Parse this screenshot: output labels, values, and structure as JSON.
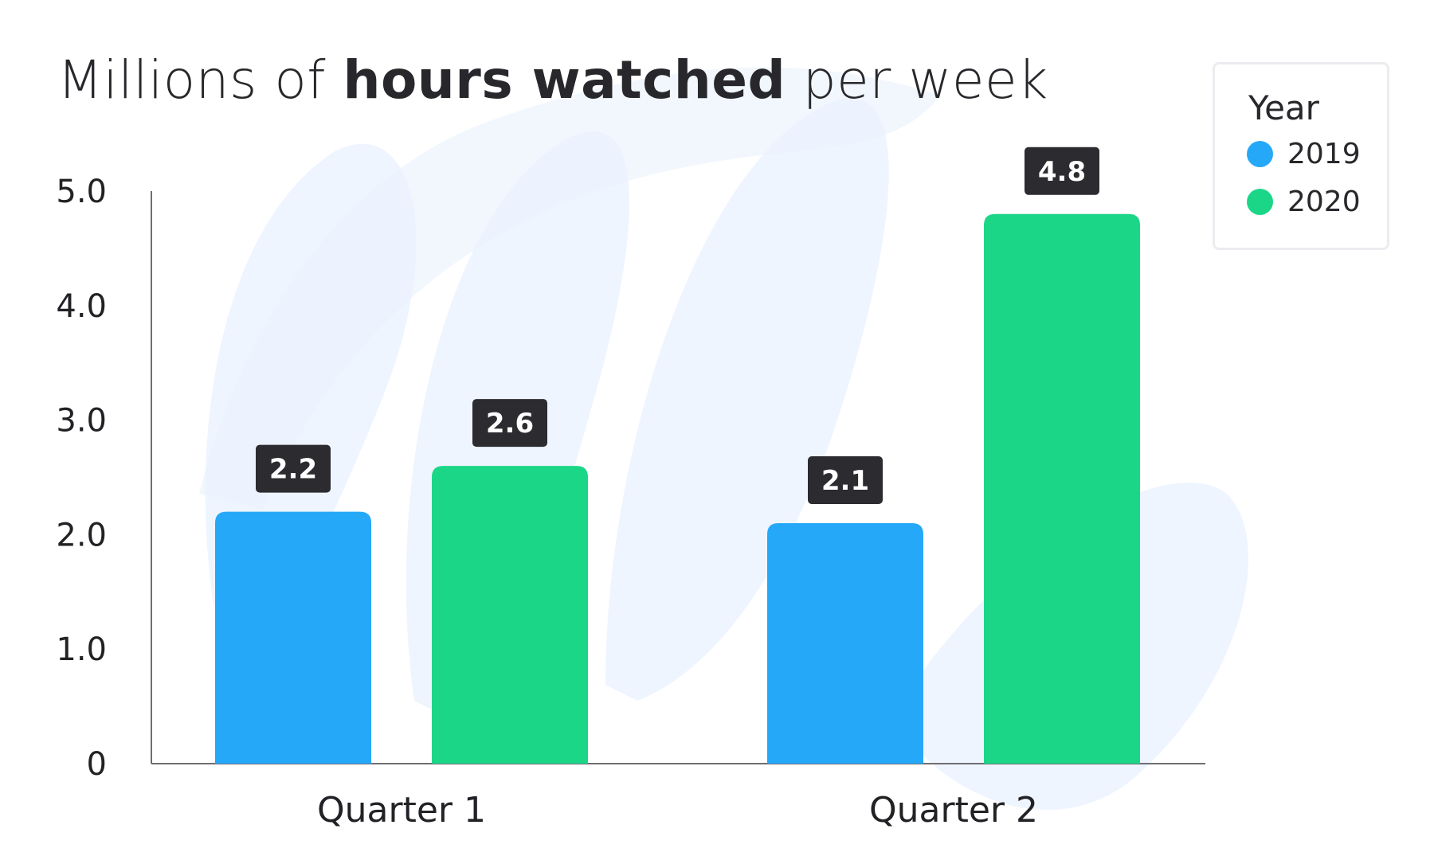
{
  "title": {
    "before": "Millions of ",
    "bold": "hours watched",
    "after": " per week"
  },
  "legend": {
    "title": "Year",
    "items": [
      {
        "label": "2019",
        "color": "#26a8f8"
      },
      {
        "label": "2020",
        "color": "#1cd688"
      }
    ]
  },
  "colors": {
    "label_bg": "#2b2b30",
    "label_text": "#ffffff",
    "axis": "#6e6e72",
    "watermark": "#eaf2fd"
  },
  "chart_data": {
    "type": "bar",
    "title": "Millions of hours watched per week",
    "categories": [
      "Quarter 1",
      "Quarter 2"
    ],
    "series": [
      {
        "name": "2019",
        "values": [
          2.2,
          2.1
        ],
        "color": "#26a8f8"
      },
      {
        "name": "2020",
        "values": [
          2.6,
          4.8
        ],
        "color": "#1cd688"
      }
    ],
    "ylim": [
      0,
      5.0
    ],
    "yticks": [
      0,
      1.0,
      2.0,
      3.0,
      4.0,
      5.0
    ],
    "ytick_labels": [
      "0",
      "1.0",
      "2.0",
      "3.0",
      "4.0",
      "5.0"
    ],
    "legend_position": "top-right",
    "grid": false,
    "xlabel": "",
    "ylabel": ""
  }
}
